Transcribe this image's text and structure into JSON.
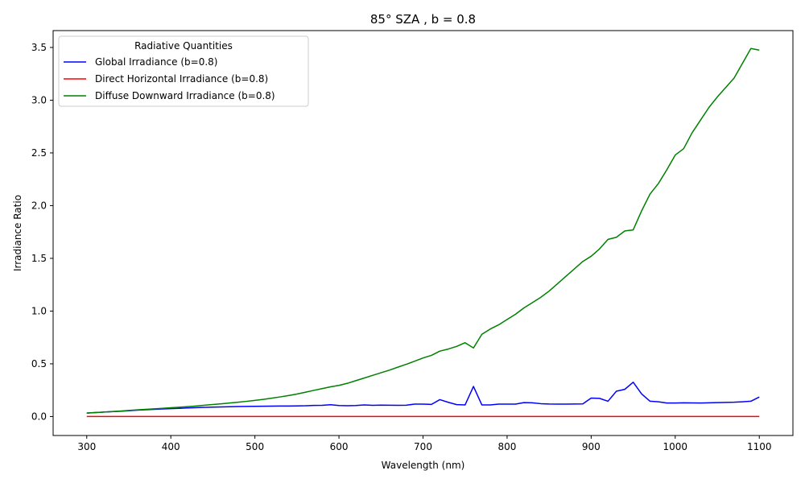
{
  "chart_data": {
    "type": "line",
    "title": "85° SZA , b = 0.8",
    "xlabel": "Wavelength (nm)",
    "ylabel": "Irradiance Ratio",
    "xlim": [
      260,
      1140
    ],
    "ylim": [
      -0.18,
      3.66
    ],
    "xticks": [
      300,
      400,
      500,
      600,
      700,
      800,
      900,
      1000,
      1100
    ],
    "yticks": [
      0.0,
      0.5,
      1.0,
      1.5,
      2.0,
      2.5,
      3.0,
      3.5
    ],
    "xtick_labels": [
      "300",
      "400",
      "500",
      "600",
      "700",
      "800",
      "900",
      "1000",
      "1100"
    ],
    "ytick_labels": [
      "0.0",
      "0.5",
      "1.0",
      "1.5",
      "2.0",
      "2.5",
      "3.0",
      "3.5"
    ],
    "legend": {
      "title": "Radiative Quantities",
      "position": "upper-left"
    },
    "x": [
      300,
      310,
      320,
      330,
      340,
      350,
      360,
      370,
      380,
      390,
      400,
      410,
      420,
      430,
      440,
      450,
      460,
      470,
      480,
      490,
      500,
      510,
      520,
      530,
      540,
      550,
      560,
      570,
      580,
      590,
      600,
      610,
      620,
      630,
      640,
      650,
      660,
      670,
      680,
      690,
      700,
      710,
      720,
      730,
      740,
      750,
      760,
      770,
      780,
      790,
      800,
      810,
      820,
      830,
      840,
      850,
      860,
      870,
      880,
      890,
      900,
      910,
      920,
      930,
      940,
      950,
      960,
      970,
      980,
      990,
      1000,
      1010,
      1020,
      1030,
      1040,
      1050,
      1060,
      1070,
      1080,
      1090,
      1100
    ],
    "series": [
      {
        "name": "Global Irradiance (b=0.8)",
        "color": "#0000ff",
        "values": [
          0.033,
          0.038,
          0.042,
          0.046,
          0.05,
          0.055,
          0.06,
          0.064,
          0.068,
          0.072,
          0.075,
          0.078,
          0.081,
          0.084,
          0.087,
          0.089,
          0.091,
          0.093,
          0.095,
          0.096,
          0.097,
          0.098,
          0.099,
          0.1,
          0.1,
          0.101,
          0.102,
          0.105,
          0.106,
          0.112,
          0.104,
          0.102,
          0.104,
          0.11,
          0.106,
          0.108,
          0.107,
          0.106,
          0.107,
          0.118,
          0.118,
          0.115,
          0.16,
          0.135,
          0.113,
          0.11,
          0.285,
          0.11,
          0.11,
          0.118,
          0.118,
          0.118,
          0.132,
          0.13,
          0.122,
          0.119,
          0.118,
          0.118,
          0.119,
          0.12,
          0.175,
          0.172,
          0.145,
          0.24,
          0.258,
          0.325,
          0.215,
          0.145,
          0.14,
          0.128,
          0.128,
          0.13,
          0.129,
          0.128,
          0.13,
          0.132,
          0.134,
          0.136,
          0.14,
          0.145,
          0.185
        ]
      },
      {
        "name": "Direct Horizontal Irradiance (b=0.8)",
        "color": "#ff0000",
        "values": [
          0,
          0,
          0,
          0,
          0,
          0,
          0,
          0,
          0,
          0,
          0,
          0,
          0,
          0,
          0,
          0,
          0,
          0,
          0,
          0,
          0,
          0,
          0,
          0,
          0,
          0,
          0,
          0,
          0,
          0,
          0,
          0,
          0,
          0,
          0,
          0,
          0,
          0,
          0,
          0,
          0,
          0,
          0,
          0,
          0,
          0,
          0,
          0,
          0,
          0,
          0,
          0,
          0,
          0,
          0,
          0,
          0,
          0,
          0,
          0,
          0,
          0,
          0,
          0,
          0,
          0,
          0,
          0,
          0,
          0,
          0,
          0,
          0,
          0,
          0,
          0,
          0,
          0,
          0,
          0,
          0
        ]
      },
      {
        "name": "Diffuse Downward Irradiance (b=0.8)",
        "color": "#008000",
        "values": [
          0.033,
          0.038,
          0.042,
          0.047,
          0.052,
          0.058,
          0.063,
          0.068,
          0.073,
          0.078,
          0.083,
          0.088,
          0.094,
          0.1,
          0.107,
          0.114,
          0.121,
          0.128,
          0.136,
          0.144,
          0.153,
          0.163,
          0.174,
          0.186,
          0.199,
          0.213,
          0.23,
          0.248,
          0.265,
          0.282,
          0.295,
          0.315,
          0.34,
          0.365,
          0.39,
          0.415,
          0.44,
          0.468,
          0.495,
          0.525,
          0.555,
          0.58,
          0.62,
          0.64,
          0.665,
          0.7,
          0.65,
          0.78,
          0.83,
          0.87,
          0.92,
          0.97,
          1.03,
          1.08,
          1.13,
          1.19,
          1.26,
          1.33,
          1.4,
          1.47,
          1.52,
          1.59,
          1.68,
          1.7,
          1.76,
          1.77,
          1.95,
          2.11,
          2.21,
          2.34,
          2.48,
          2.54,
          2.69,
          2.81,
          2.93,
          3.03,
          3.12,
          3.21,
          3.35,
          3.49,
          3.475
        ]
      }
    ]
  }
}
